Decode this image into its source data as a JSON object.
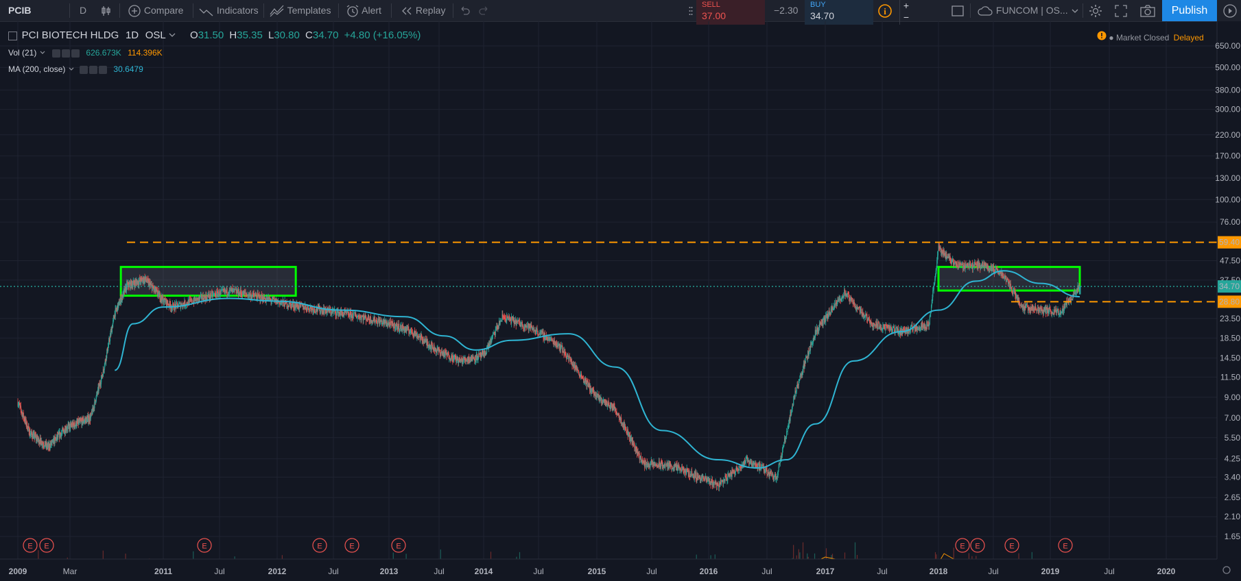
{
  "toolbar": {
    "symbol": "PCIB",
    "interval": "D",
    "compare": "Compare",
    "indicators": "Indicators",
    "templates": "Templates",
    "alert": "Alert",
    "replay": "Replay",
    "sell_label": "SELL",
    "sell_price": "37.00",
    "spread": "−2.30",
    "buy_label": "BUY",
    "buy_price": "34.70",
    "watchlist": "FUNCOM | OS...",
    "publish": "Publish",
    "plus": "+",
    "minus": "−"
  },
  "legend": {
    "name": "PCI BIOTECH HLDG",
    "interval": "1D",
    "exchange": "OSL",
    "open_label": "O",
    "open": "31.50",
    "high_label": "H",
    "high": "35.35",
    "low_label": "L",
    "low": "30.80",
    "close_label": "C",
    "close": "34.70",
    "change": "+4.80 (+16.05%)",
    "vol_label": "Vol (21)",
    "vol_value": "626.673K",
    "vol_ma": "114.396K",
    "ma_label": "MA (200, close)",
    "ma_value": "30.6479",
    "market_status": "Market Closed",
    "delayed": "Delayed"
  },
  "colors": {
    "background": "#131722",
    "up": "#26a69a",
    "down": "#ef5350",
    "ma": "#2fb5d3",
    "level": "#ff9800",
    "box": "#00ff00",
    "volume_ma": "#ff9800"
  },
  "chart_data": {
    "type": "candlestick",
    "title": "PCI BIOTECH HLDG, 1D, OSL",
    "y_scale": "log",
    "ylim": [
      1.5,
      650
    ],
    "price_ticks": [
      "650.00",
      "500.00",
      "380.00",
      "300.00",
      "220.00",
      "170.00",
      "130.00",
      "100.00",
      "76.00",
      "47.50",
      "37.50",
      "23.50",
      "18.50",
      "14.50",
      "11.50",
      "9.00",
      "7.00",
      "5.50",
      "4.25",
      "3.40",
      "2.65",
      "2.10",
      "1.65"
    ],
    "time_labels": [
      "2009",
      "Mar",
      "2011",
      "Jul",
      "2012",
      "Jul",
      "2013",
      "Jul",
      "2014",
      "Jul",
      "2015",
      "Jul",
      "2016",
      "Jul",
      "2017",
      "Jul",
      "2018",
      "Jul",
      "2019",
      "Jul",
      "2020"
    ],
    "price_path": [
      [
        "2009-01",
        8.5
      ],
      [
        "2009-03",
        5.8
      ],
      [
        "2009-06",
        4.9
      ],
      [
        "2009-09",
        6.2
      ],
      [
        "2010-01",
        7.0
      ],
      [
        "2010-03",
        12.0
      ],
      [
        "2010-05",
        25.0
      ],
      [
        "2010-07",
        35.0
      ],
      [
        "2010-10",
        38.0
      ],
      [
        "2010-12",
        32.0
      ],
      [
        "2011-02",
        27.0
      ],
      [
        "2011-05",
        30.0
      ],
      [
        "2011-08",
        33.0
      ],
      [
        "2011-11",
        30.5
      ],
      [
        "2012-02",
        28.0
      ],
      [
        "2012-06",
        26.0
      ],
      [
        "2012-10",
        24.0
      ],
      [
        "2013-01",
        22.0
      ],
      [
        "2013-04",
        20.0
      ],
      [
        "2013-07",
        16.0
      ],
      [
        "2013-10",
        14.0
      ],
      [
        "2014-01",
        15.0
      ],
      [
        "2014-03",
        24.0
      ],
      [
        "2014-06",
        21.0
      ],
      [
        "2014-09",
        17.0
      ],
      [
        "2015-01",
        9.0
      ],
      [
        "2015-03",
        7.8
      ],
      [
        "2015-06",
        4.0
      ],
      [
        "2015-09",
        3.9
      ],
      [
        "2015-12",
        3.4
      ],
      [
        "2016-02",
        3.1
      ],
      [
        "2016-05",
        4.2
      ],
      [
        "2016-08",
        3.4
      ],
      [
        "2016-10",
        10.0
      ],
      [
        "2016-12",
        20.0
      ],
      [
        "2017-03",
        32.0
      ],
      [
        "2017-06",
        22.0
      ],
      [
        "2017-09",
        20.0
      ],
      [
        "2017-12",
        22.0
      ],
      [
        "2018-01",
        55.0
      ],
      [
        "2018-03",
        45.0
      ],
      [
        "2018-06",
        45.0
      ],
      [
        "2018-08",
        40.0
      ],
      [
        "2018-10",
        27.0
      ],
      [
        "2018-12",
        26.0
      ],
      [
        "2019-02",
        25.5
      ],
      [
        "2019-04",
        34.7
      ]
    ],
    "ma200_path": [
      [
        "2010-05",
        12.5
      ],
      [
        "2010-08",
        22.0
      ],
      [
        "2011-01",
        27.0
      ],
      [
        "2011-08",
        30.0
      ],
      [
        "2012-01",
        29.0
      ],
      [
        "2012-08",
        26.0
      ],
      [
        "2013-03",
        24.0
      ],
      [
        "2013-08",
        19.0
      ],
      [
        "2013-12",
        16.0
      ],
      [
        "2014-04",
        18.0
      ],
      [
        "2014-10",
        19.5
      ],
      [
        "2015-03",
        13.0
      ],
      [
        "2015-08",
        6.0
      ],
      [
        "2016-02",
        4.2
      ],
      [
        "2016-06",
        3.8
      ],
      [
        "2016-09",
        4.2
      ],
      [
        "2016-12",
        6.5
      ],
      [
        "2017-04",
        14.0
      ],
      [
        "2017-09",
        20.0
      ],
      [
        "2018-01",
        26.0
      ],
      [
        "2018-05",
        37.0
      ],
      [
        "2018-08",
        42.0
      ],
      [
        "2018-12",
        36.0
      ],
      [
        "2019-04",
        30.6
      ]
    ],
    "earnings_markers": [
      "E",
      "E",
      "E",
      "E",
      "E",
      "E",
      "E",
      "E",
      "E",
      "E"
    ],
    "horizontal_levels": [
      {
        "label": "59.40",
        "value": 59.4,
        "style": "dashed",
        "color": "#ff9800"
      },
      {
        "label": "28.80",
        "value": 28.8,
        "style": "dashed",
        "color": "#ff9800"
      },
      {
        "label": "34.70",
        "value": 34.7,
        "style": "dotted",
        "color": "#26a69a"
      }
    ],
    "boxes": [
      {
        "from": "2010-06",
        "to": "2012-03",
        "low": 31,
        "high": 44
      },
      {
        "from": "2018-01",
        "to": "2019-04",
        "low": 33,
        "high": 44
      }
    ]
  }
}
